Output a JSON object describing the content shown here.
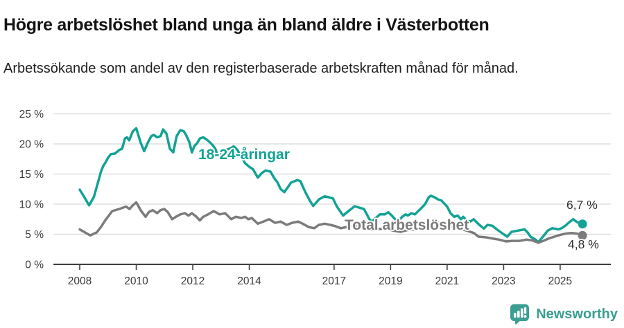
{
  "header": {
    "title": "Högre arbetslöshet bland unga än bland äldre i Västerbotten",
    "subtitle": "Arbetssökande som andel av den registerbaserade arbetskraften månad för månad."
  },
  "chart_data": {
    "type": "line",
    "title": "Högre arbetslöshet bland unga än bland äldre i Västerbotten",
    "subtitle": "Arbetssökande som andel av den registerbaserade arbetskraften månad för månad.",
    "xlabel": "",
    "ylabel": "",
    "x_unit": "decimal year (monthly data)",
    "xlim": [
      2007.1,
      2026.3
    ],
    "ylim": [
      0,
      25
    ],
    "grid": "horizontal",
    "legend_position": "inline-labels",
    "x_ticks": [
      {
        "v": 2008,
        "label": "2008"
      },
      {
        "v": 2010,
        "label": "2010"
      },
      {
        "v": 2012,
        "label": "2012"
      },
      {
        "v": 2014,
        "label": "2014"
      },
      {
        "v": 2017,
        "label": "2017"
      },
      {
        "v": 2019,
        "label": "2019"
      },
      {
        "v": 2021,
        "label": "2021"
      },
      {
        "v": 2023,
        "label": "2023"
      },
      {
        "v": 2025,
        "label": "2025"
      }
    ],
    "y_ticks": [
      {
        "v": 0,
        "label": "0 %"
      },
      {
        "v": 5,
        "label": "5 %"
      },
      {
        "v": 10,
        "label": "10 %"
      },
      {
        "v": 15,
        "label": "15 %"
      },
      {
        "v": 20,
        "label": "20 %"
      },
      {
        "v": 25,
        "label": "25 %"
      }
    ],
    "series": [
      {
        "name": "18-24-åringar",
        "color": "#12a294",
        "end_label": "6,7 %",
        "end_value": 6.7,
        "points": [
          [
            2008.0,
            12.4
          ],
          [
            2008.17,
            11.1
          ],
          [
            2008.33,
            9.8
          ],
          [
            2008.5,
            11.2
          ],
          [
            2008.58,
            12.5
          ],
          [
            2008.67,
            14.0
          ],
          [
            2008.75,
            15.4
          ],
          [
            2008.83,
            16.3
          ],
          [
            2008.92,
            17.0
          ],
          [
            2009.0,
            17.7
          ],
          [
            2009.1,
            18.3
          ],
          [
            2009.25,
            18.4
          ],
          [
            2009.4,
            19.0
          ],
          [
            2009.5,
            19.2
          ],
          [
            2009.6,
            20.9
          ],
          [
            2009.67,
            21.1
          ],
          [
            2009.75,
            20.6
          ],
          [
            2009.88,
            22.1
          ],
          [
            2010.0,
            22.6
          ],
          [
            2010.15,
            20.3
          ],
          [
            2010.28,
            18.8
          ],
          [
            2010.4,
            20.1
          ],
          [
            2010.53,
            21.3
          ],
          [
            2010.62,
            21.5
          ],
          [
            2010.74,
            21.1
          ],
          [
            2010.86,
            21.3
          ],
          [
            2010.95,
            22.4
          ],
          [
            2011.07,
            21.7
          ],
          [
            2011.19,
            19.2
          ],
          [
            2011.31,
            18.6
          ],
          [
            2011.43,
            21.3
          ],
          [
            2011.56,
            22.3
          ],
          [
            2011.68,
            22.1
          ],
          [
            2011.76,
            21.5
          ],
          [
            2011.88,
            20.3
          ],
          [
            2011.97,
            18.6
          ],
          [
            2012.05,
            19.6
          ],
          [
            2012.15,
            20.1
          ],
          [
            2012.25,
            20.9
          ],
          [
            2012.37,
            21.1
          ],
          [
            2012.5,
            20.7
          ],
          [
            2012.6,
            20.3
          ],
          [
            2012.7,
            19.8
          ],
          [
            2012.8,
            19.2
          ],
          [
            2012.87,
            18.2
          ],
          [
            2012.95,
            17.9
          ],
          [
            2013.05,
            18.8
          ],
          [
            2013.15,
            19.0
          ],
          [
            2013.3,
            19.2
          ],
          [
            2013.45,
            19.6
          ],
          [
            2013.58,
            19.0
          ],
          [
            2013.7,
            18.0
          ],
          [
            2013.85,
            16.8
          ],
          [
            2014.0,
            16.2
          ],
          [
            2014.13,
            15.8
          ],
          [
            2014.3,
            14.4
          ],
          [
            2014.45,
            15.2
          ],
          [
            2014.58,
            15.6
          ],
          [
            2014.75,
            15.4
          ],
          [
            2014.9,
            14.2
          ],
          [
            2015.0,
            13.6
          ],
          [
            2015.11,
            12.5
          ],
          [
            2015.24,
            12.0
          ],
          [
            2015.48,
            13.6
          ],
          [
            2015.7,
            14.0
          ],
          [
            2015.81,
            13.8
          ],
          [
            2015.97,
            12.1
          ],
          [
            2016.14,
            10.6
          ],
          [
            2016.26,
            9.7
          ],
          [
            2016.47,
            10.8
          ],
          [
            2016.67,
            11.3
          ],
          [
            2016.8,
            11.15
          ],
          [
            2016.96,
            10.95
          ],
          [
            2017.1,
            9.6
          ],
          [
            2017.32,
            8.1
          ],
          [
            2017.5,
            8.8
          ],
          [
            2017.73,
            9.65
          ],
          [
            2017.9,
            9.4
          ],
          [
            2018.06,
            9.2
          ],
          [
            2018.25,
            7.5
          ],
          [
            2018.34,
            7.1
          ],
          [
            2018.62,
            8.3
          ],
          [
            2018.8,
            8.3
          ],
          [
            2018.92,
            8.65
          ],
          [
            2019.04,
            8.1
          ],
          [
            2019.16,
            7.5
          ],
          [
            2019.29,
            7.3
          ],
          [
            2019.41,
            7.9
          ],
          [
            2019.53,
            8.3
          ],
          [
            2019.61,
            8.1
          ],
          [
            2019.74,
            8.5
          ],
          [
            2019.86,
            8.3
          ],
          [
            2019.98,
            8.85
          ],
          [
            2020.1,
            9.4
          ],
          [
            2020.22,
            10.0
          ],
          [
            2020.35,
            11.15
          ],
          [
            2020.43,
            11.4
          ],
          [
            2020.55,
            11.15
          ],
          [
            2020.67,
            10.8
          ],
          [
            2020.8,
            10.6
          ],
          [
            2020.88,
            10.2
          ],
          [
            2021.0,
            9.6
          ],
          [
            2021.12,
            8.5
          ],
          [
            2021.25,
            7.9
          ],
          [
            2021.37,
            8.1
          ],
          [
            2021.49,
            7.5
          ],
          [
            2021.57,
            7.9
          ],
          [
            2021.69,
            7.3
          ],
          [
            2021.82,
            7.1
          ],
          [
            2021.94,
            7.5
          ],
          [
            2022.02,
            7.1
          ],
          [
            2022.15,
            6.5
          ],
          [
            2022.3,
            5.95
          ],
          [
            2022.43,
            6.55
          ],
          [
            2022.6,
            6.4
          ],
          [
            2022.76,
            5.8
          ],
          [
            2023.0,
            5.0
          ],
          [
            2023.13,
            4.6
          ],
          [
            2023.28,
            5.4
          ],
          [
            2023.5,
            5.6
          ],
          [
            2023.74,
            5.8
          ],
          [
            2023.85,
            5.3
          ],
          [
            2023.95,
            4.6
          ],
          [
            2024.1,
            4.2
          ],
          [
            2024.23,
            3.7
          ],
          [
            2024.39,
            4.6
          ],
          [
            2024.56,
            5.6
          ],
          [
            2024.72,
            6.0
          ],
          [
            2024.85,
            5.9
          ],
          [
            2024.93,
            5.8
          ],
          [
            2025.05,
            6.0
          ],
          [
            2025.18,
            6.4
          ],
          [
            2025.3,
            6.9
          ],
          [
            2025.46,
            7.5
          ],
          [
            2025.6,
            7.0
          ],
          [
            2025.79,
            6.7
          ]
        ]
      },
      {
        "name": "Total arbetslöshet",
        "color": "#7b7b7b",
        "end_label": "4,8 %",
        "end_value": 4.8,
        "points": [
          [
            2008.0,
            5.8
          ],
          [
            2008.15,
            5.4
          ],
          [
            2008.37,
            4.8
          ],
          [
            2008.6,
            5.3
          ],
          [
            2008.75,
            6.2
          ],
          [
            2008.9,
            7.3
          ],
          [
            2009.15,
            8.85
          ],
          [
            2009.4,
            9.2
          ],
          [
            2009.64,
            9.6
          ],
          [
            2009.76,
            9.2
          ],
          [
            2009.88,
            9.8
          ],
          [
            2010.0,
            10.3
          ],
          [
            2010.17,
            8.9
          ],
          [
            2010.33,
            7.9
          ],
          [
            2010.45,
            8.7
          ],
          [
            2010.58,
            9.0
          ],
          [
            2010.74,
            8.5
          ],
          [
            2010.86,
            9.0
          ],
          [
            2010.99,
            9.2
          ],
          [
            2011.11,
            8.7
          ],
          [
            2011.27,
            7.5
          ],
          [
            2011.4,
            7.9
          ],
          [
            2011.56,
            8.3
          ],
          [
            2011.72,
            8.5
          ],
          [
            2011.85,
            8.1
          ],
          [
            2011.97,
            8.5
          ],
          [
            2012.13,
            7.9
          ],
          [
            2012.25,
            7.3
          ],
          [
            2012.37,
            7.9
          ],
          [
            2012.54,
            8.3
          ],
          [
            2012.74,
            8.85
          ],
          [
            2012.95,
            8.3
          ],
          [
            2013.15,
            8.5
          ],
          [
            2013.36,
            7.5
          ],
          [
            2013.52,
            7.9
          ],
          [
            2013.72,
            7.7
          ],
          [
            2013.85,
            7.9
          ],
          [
            2013.97,
            7.5
          ],
          [
            2014.09,
            7.7
          ],
          [
            2014.3,
            6.75
          ],
          [
            2014.5,
            7.1
          ],
          [
            2014.7,
            7.5
          ],
          [
            2014.91,
            6.9
          ],
          [
            2015.11,
            7.1
          ],
          [
            2015.32,
            6.55
          ],
          [
            2015.52,
            6.9
          ],
          [
            2015.73,
            7.1
          ],
          [
            2015.89,
            6.75
          ],
          [
            2016.1,
            6.2
          ],
          [
            2016.3,
            6.0
          ],
          [
            2016.46,
            6.55
          ],
          [
            2016.67,
            6.75
          ],
          [
            2016.87,
            6.55
          ],
          [
            2017.04,
            6.35
          ],
          [
            2017.24,
            6.0
          ],
          [
            2017.44,
            6.2
          ],
          [
            2017.65,
            6.35
          ],
          [
            2017.85,
            6.3
          ],
          [
            2018.1,
            6.0
          ],
          [
            2018.35,
            5.7
          ],
          [
            2018.6,
            5.9
          ],
          [
            2018.85,
            5.9
          ],
          [
            2019.1,
            5.6
          ],
          [
            2019.35,
            5.4
          ],
          [
            2019.6,
            5.7
          ],
          [
            2019.85,
            5.8
          ],
          [
            2020.1,
            6.1
          ],
          [
            2020.35,
            6.9
          ],
          [
            2020.5,
            7.1
          ],
          [
            2020.7,
            6.9
          ],
          [
            2020.9,
            6.6
          ],
          [
            2021.1,
            6.4
          ],
          [
            2021.4,
            6.0
          ],
          [
            2021.7,
            5.6
          ],
          [
            2021.95,
            5.2
          ],
          [
            2022.11,
            4.6
          ],
          [
            2022.36,
            4.5
          ],
          [
            2022.6,
            4.3
          ],
          [
            2022.84,
            4.1
          ],
          [
            2023.09,
            3.8
          ],
          [
            2023.3,
            3.9
          ],
          [
            2023.55,
            3.9
          ],
          [
            2023.8,
            4.1
          ],
          [
            2024.0,
            4.0
          ],
          [
            2024.23,
            3.6
          ],
          [
            2024.4,
            3.9
          ],
          [
            2024.6,
            4.3
          ],
          [
            2024.8,
            4.6
          ],
          [
            2025.0,
            4.9
          ],
          [
            2025.2,
            5.1
          ],
          [
            2025.4,
            5.2
          ],
          [
            2025.6,
            5.1
          ],
          [
            2025.79,
            4.8
          ]
        ]
      }
    ]
  },
  "footer": {
    "brand": "Newsworthy",
    "brand_color": "#3a9e92",
    "logo_icon": "bar-chart-speech-bubble"
  }
}
